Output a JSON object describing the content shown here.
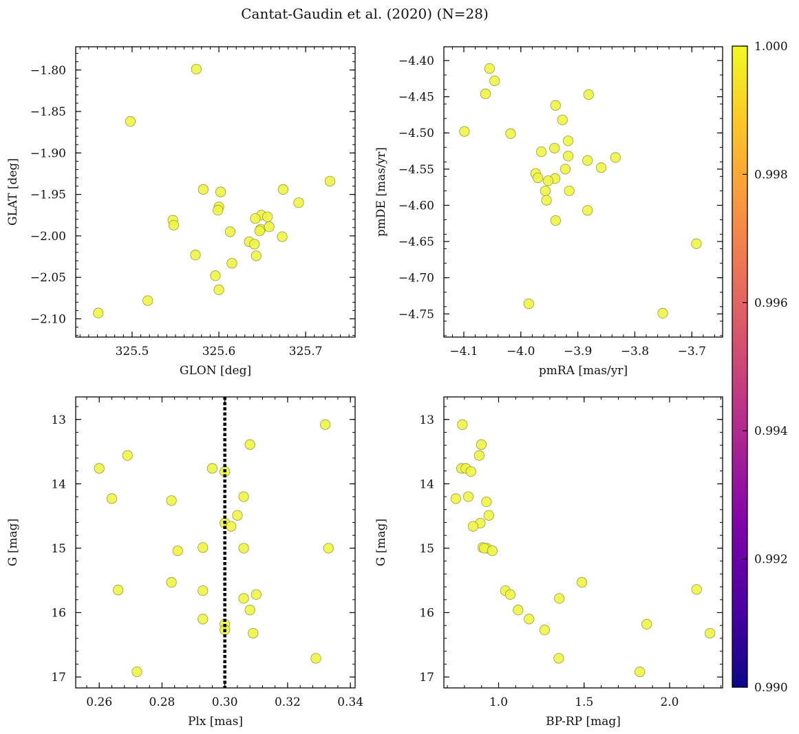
{
  "figure": {
    "title": "Cantat-Gaudin et al. (2020) (N=28)"
  },
  "colors": {
    "point_fill": "#eef53f",
    "point_edge": "#9a9a40",
    "vline": "#000000"
  },
  "colorbar": {
    "colormap": "plasma",
    "range": [
      0.99,
      1.0
    ],
    "ticks": [
      0.99,
      0.992,
      0.994,
      0.996,
      0.998,
      1.0
    ],
    "tick_labels": [
      "0.990",
      "0.992",
      "0.994",
      "0.996",
      "0.998",
      "1.000"
    ]
  },
  "chart_data": [
    {
      "id": "glon-glat",
      "type": "scatter",
      "xlabel": "GLON [deg]",
      "ylabel": "GLAT [deg]",
      "xlim": [
        325.435,
        325.757
      ],
      "ylim": [
        -2.122,
        -1.772
      ],
      "yinvert": false,
      "xticks": [
        325.5,
        325.6,
        325.7
      ],
      "xtick_labels": [
        "325.5",
        "325.6",
        "325.7"
      ],
      "yticks": [
        -1.8,
        -1.85,
        -1.9,
        -1.95,
        -2.0,
        -2.05,
        -2.1
      ],
      "ytick_labels": [
        "−1.80",
        "−1.85",
        "−1.90",
        "−1.95",
        "−2.00",
        "−2.05",
        "−2.10"
      ],
      "x": [
        325.574,
        325.498,
        325.582,
        325.602,
        325.6,
        325.599,
        325.547,
        325.548,
        325.674,
        325.728,
        325.692,
        325.649,
        325.642,
        325.656,
        325.648,
        325.647,
        325.613,
        325.658,
        325.673,
        325.635,
        325.641,
        325.643,
        325.573,
        325.615,
        325.596,
        325.6,
        325.518,
        325.461
      ],
      "y": [
        -1.799,
        -1.862,
        -1.944,
        -1.947,
        -1.965,
        -1.969,
        -1.981,
        -1.987,
        -1.944,
        -1.934,
        -1.96,
        -1.975,
        -1.979,
        -1.977,
        -1.992,
        -1.994,
        -1.995,
        -1.989,
        -2.001,
        -2.007,
        -2.01,
        -2.024,
        -2.023,
        -2.033,
        -2.048,
        -2.065,
        -2.078,
        -2.093
      ],
      "color_values": [
        1,
        1,
        1,
        1,
        1,
        1,
        1,
        1,
        1,
        1,
        1,
        1,
        1,
        1,
        1,
        1,
        1,
        1,
        1,
        1,
        1,
        1,
        1,
        1,
        1,
        1,
        1,
        1
      ]
    },
    {
      "id": "pm",
      "type": "scatter",
      "xlabel": "pmRA [mas/yr]",
      "ylabel": "pmDE [mas/yr]",
      "xlim": [
        -4.135,
        -3.646
      ],
      "ylim": [
        -4.782,
        -4.381
      ],
      "yinvert": false,
      "xticks": [
        -4.1,
        -4.0,
        -3.9,
        -3.8,
        -3.7
      ],
      "xtick_labels": [
        "−4.1",
        "−4.0",
        "−3.9",
        "−3.8",
        "−3.7"
      ],
      "yticks": [
        -4.4,
        -4.45,
        -4.5,
        -4.55,
        -4.6,
        -4.65,
        -4.7,
        -4.75
      ],
      "ytick_labels": [
        "−4.40",
        "−4.45",
        "−4.50",
        "−4.55",
        "−4.60",
        "−4.65",
        "−4.70",
        "−4.75"
      ],
      "x": [
        -4.055,
        -4.046,
        -4.062,
        -3.881,
        -3.939,
        -3.927,
        -4.099,
        -4.018,
        -3.917,
        -3.941,
        -3.964,
        -3.917,
        -3.883,
        -3.834,
        -3.922,
        -3.859,
        -3.974,
        -3.97,
        -3.94,
        -3.952,
        -3.957,
        -3.915,
        -3.955,
        -3.883,
        -3.939,
        -3.692,
        -3.986,
        -3.751
      ],
      "y": [
        -4.411,
        -4.428,
        -4.446,
        -4.447,
        -4.462,
        -4.482,
        -4.498,
        -4.501,
        -4.511,
        -4.521,
        -4.526,
        -4.532,
        -4.538,
        -4.534,
        -4.55,
        -4.548,
        -4.556,
        -4.562,
        -4.563,
        -4.566,
        -4.58,
        -4.58,
        -4.593,
        -4.607,
        -4.621,
        -4.653,
        -4.736,
        -4.749
      ],
      "color_values": [
        1,
        1,
        1,
        1,
        1,
        1,
        1,
        1,
        1,
        1,
        1,
        1,
        1,
        1,
        1,
        1,
        1,
        1,
        1,
        1,
        1,
        1,
        1,
        1,
        1,
        1,
        1,
        1
      ]
    },
    {
      "id": "plx-g",
      "type": "scatter",
      "xlabel": "Plx [mas]",
      "ylabel": "G [mag]",
      "xlim": [
        0.2525,
        0.3415
      ],
      "ylim": [
        12.65,
        17.17
      ],
      "yinvert": true,
      "xticks": [
        0.26,
        0.28,
        0.3,
        0.32,
        0.34
      ],
      "xtick_labels": [
        "0.26",
        "0.28",
        "0.30",
        "0.32",
        "0.34"
      ],
      "yticks": [
        13,
        14,
        15,
        16,
        17
      ],
      "ytick_labels": [
        "13",
        "14",
        "15",
        "16",
        "17"
      ],
      "vline": {
        "x": 0.3,
        "style": "dotted"
      },
      "x": [
        0.332,
        0.308,
        0.269,
        0.26,
        0.296,
        0.3,
        0.264,
        0.283,
        0.306,
        0.304,
        0.3,
        0.302,
        0.293,
        0.333,
        0.306,
        0.285,
        0.283,
        0.266,
        0.293,
        0.31,
        0.306,
        0.308,
        0.293,
        0.3,
        0.3,
        0.309,
        0.329,
        0.272
      ],
      "y": [
        13.08,
        13.39,
        13.56,
        13.76,
        13.76,
        13.81,
        14.23,
        14.26,
        14.2,
        14.49,
        14.61,
        14.66,
        14.99,
        15.0,
        15.0,
        15.04,
        15.53,
        15.65,
        15.66,
        15.72,
        15.78,
        15.96,
        16.1,
        16.18,
        16.27,
        16.32,
        16.71,
        16.92
      ],
      "color_values": [
        1,
        1,
        1,
        1,
        1,
        1,
        1,
        1,
        1,
        1,
        1,
        1,
        1,
        1,
        1,
        1,
        1,
        1,
        1,
        1,
        1,
        1,
        1,
        1,
        1,
        1,
        1,
        1
      ]
    },
    {
      "id": "cmd",
      "type": "scatter",
      "xlabel": "BP-RP [mag]",
      "ylabel": "G [mag]",
      "xlim": [
        0.68,
        2.31
      ],
      "ylim": [
        12.65,
        17.17
      ],
      "yinvert": true,
      "xticks": [
        1.0,
        1.5,
        2.0
      ],
      "xtick_labels": [
        "1.0",
        "1.5",
        "2.0"
      ],
      "yticks": [
        13,
        14,
        15,
        16,
        17
      ],
      "ytick_labels": [
        "13",
        "14",
        "15",
        "16",
        "17"
      ],
      "x": [
        0.788,
        0.899,
        0.887,
        0.783,
        0.808,
        0.838,
        0.75,
        0.823,
        0.929,
        0.943,
        0.893,
        0.851,
        0.907,
        0.931,
        0.916,
        0.963,
        1.487,
        2.158,
        1.04,
        1.068,
        1.355,
        1.114,
        1.178,
        1.269,
        1.866,
        2.236,
        1.352,
        1.826
      ],
      "y": [
        13.08,
        13.39,
        13.56,
        13.76,
        13.76,
        13.81,
        14.23,
        14.2,
        14.28,
        14.49,
        14.61,
        14.66,
        14.99,
        15.0,
        15.0,
        15.04,
        15.53,
        15.64,
        15.66,
        15.72,
        15.78,
        15.96,
        16.1,
        16.27,
        16.18,
        16.32,
        16.71,
        16.92
      ],
      "color_values": [
        1,
        1,
        1,
        1,
        1,
        1,
        1,
        1,
        1,
        1,
        1,
        1,
        1,
        1,
        1,
        1,
        1,
        1,
        1,
        1,
        1,
        1,
        1,
        1,
        1,
        1,
        1,
        1
      ]
    }
  ]
}
